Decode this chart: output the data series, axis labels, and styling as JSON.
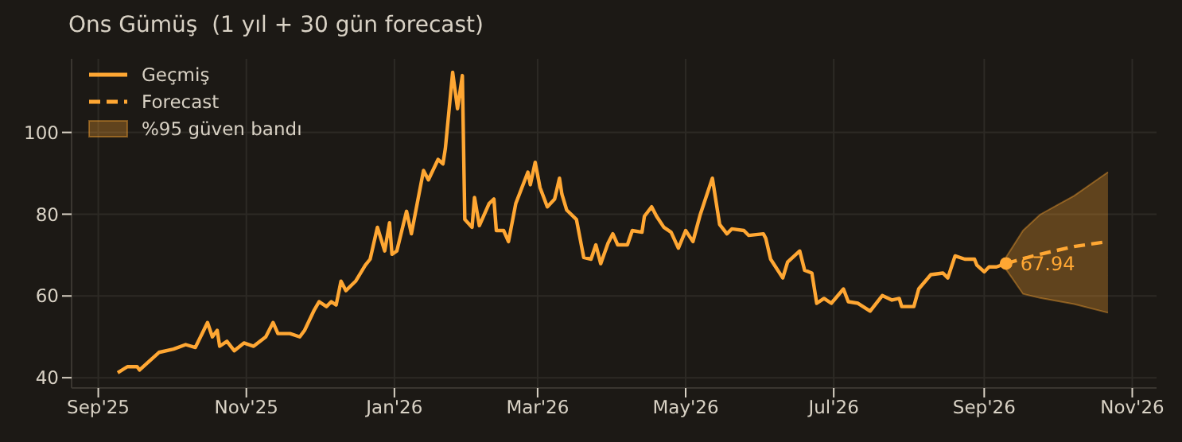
{
  "chart_data": {
    "type": "line",
    "title": "Ons Gümüş  (1 yıl + 30 gün forecast)",
    "xlim": [
      "2025-08-21",
      "2026-11-11"
    ],
    "xticks": [
      {
        "value": "2025-09-01",
        "label": "Sep'25"
      },
      {
        "value": "2025-11-01",
        "label": "Nov'25"
      },
      {
        "value": "2026-01-01",
        "label": "Jan'26"
      },
      {
        "value": "2026-03-01",
        "label": "Mar'26"
      },
      {
        "value": "2026-05-01",
        "label": "May'26"
      },
      {
        "value": "2026-07-01",
        "label": "Jul'26"
      },
      {
        "value": "2026-09-01",
        "label": "Sep'26"
      },
      {
        "value": "2026-11-01",
        "label": "Nov'26"
      }
    ],
    "ylim": [
      37.5,
      118
    ],
    "yticks": [
      40,
      60,
      80,
      100
    ],
    "grid": true,
    "legend": "top left",
    "marker": "none",
    "series": [
      {
        "name": "Geçmiş",
        "color": "#ffa733",
        "line_style": "solid",
        "x": [
          "2025-09-09",
          "2025-09-13",
          "2025-09-17",
          "2025-09-18",
          "2025-09-26",
          "2025-10-02",
          "2025-10-07",
          "2025-10-11",
          "2025-10-16",
          "2025-10-18",
          "2025-10-20",
          "2025-10-21",
          "2025-10-24",
          "2025-10-27",
          "2025-10-31",
          "2025-11-04",
          "2025-11-09",
          "2025-11-12",
          "2025-11-14",
          "2025-11-19",
          "2025-11-23",
          "2025-11-25",
          "2025-11-29",
          "2025-12-01",
          "2025-12-04",
          "2025-12-06",
          "2025-12-08",
          "2025-12-10",
          "2025-12-12",
          "2025-12-16",
          "2025-12-20",
          "2025-12-22",
          "2025-12-25",
          "2025-12-28",
          "2025-12-30",
          "2025-12-31",
          "2026-01-02",
          "2026-01-06",
          "2026-01-08",
          "2026-01-13",
          "2026-01-15",
          "2026-01-19",
          "2026-01-21",
          "2026-01-22",
          "2026-01-25",
          "2026-01-27",
          "2026-01-29",
          "2026-01-30",
          "2026-02-02",
          "2026-02-03",
          "2026-02-05",
          "2026-02-09",
          "2026-02-11",
          "2026-02-12",
          "2026-02-15",
          "2026-02-17",
          "2026-02-20",
          "2026-02-25",
          "2026-02-26",
          "2026-02-28",
          "2026-03-02",
          "2026-03-05",
          "2026-03-08",
          "2026-03-10",
          "2026-03-11",
          "2026-03-13",
          "2026-03-17",
          "2026-03-20",
          "2026-03-23",
          "2026-03-25",
          "2026-03-27",
          "2026-03-30",
          "2026-04-01",
          "2026-04-03",
          "2026-04-07",
          "2026-04-09",
          "2026-04-13",
          "2026-04-14",
          "2026-04-17",
          "2026-04-19",
          "2026-04-22",
          "2026-04-25",
          "2026-04-28",
          "2026-05-01",
          "2026-05-04",
          "2026-05-07",
          "2026-05-12",
          "2026-05-15",
          "2026-05-18",
          "2026-05-20",
          "2026-05-25",
          "2026-05-27",
          "2026-06-02",
          "2026-06-03",
          "2026-06-05",
          "2026-06-10",
          "2026-06-12",
          "2026-06-17",
          "2026-06-19",
          "2026-06-22",
          "2026-06-24",
          "2026-06-27",
          "2026-06-30",
          "2026-07-05",
          "2026-07-07",
          "2026-07-11",
          "2026-07-16",
          "2026-07-21",
          "2026-07-25",
          "2026-07-28",
          "2026-07-29",
          "2026-08-03",
          "2026-08-05",
          "2026-08-10",
          "2026-08-15",
          "2026-08-17",
          "2026-08-20",
          "2026-08-24",
          "2026-08-28",
          "2026-08-29",
          "2026-09-01",
          "2026-09-03",
          "2026-09-06",
          "2026-09-10"
        ],
        "values": [
          41.2,
          42.7,
          42.7,
          41.9,
          46.2,
          47,
          48.1,
          47.4,
          53.5,
          50,
          51.6,
          47.7,
          48.9,
          46.6,
          48.5,
          47.7,
          50,
          53.5,
          50.8,
          50.8,
          50,
          51.6,
          56.6,
          58.6,
          57.4,
          58.6,
          57.8,
          63.6,
          61.3,
          63.6,
          67.5,
          69,
          76.8,
          71,
          77.9,
          70.2,
          71,
          80.7,
          75.2,
          90.7,
          88.4,
          93.4,
          92.3,
          96.1,
          114.7,
          105.8,
          113.9,
          78.7,
          76.8,
          84.1,
          77.2,
          82.6,
          83.7,
          76,
          76,
          73.3,
          82.6,
          90.3,
          87.2,
          92.7,
          86.5,
          81.8,
          83.7,
          88.8,
          84.9,
          81,
          78.7,
          69.4,
          69,
          72.5,
          67.9,
          72.9,
          75.2,
          72.5,
          72.5,
          76,
          75.6,
          79.5,
          81.8,
          79.5,
          76.8,
          75.6,
          71.7,
          76,
          73.3,
          79.9,
          88.8,
          77.5,
          75.2,
          76.4,
          76,
          74.8,
          75.2,
          74.1,
          69,
          64.4,
          68.3,
          71,
          66.3,
          65.6,
          58.2,
          59.4,
          58.2,
          61.7,
          58.6,
          58.2,
          56.3,
          60.1,
          59,
          59.4,
          57.4,
          57.4,
          61.7,
          65.2,
          65.6,
          64.4,
          69.8,
          69,
          69,
          67.5,
          65.9,
          67.1,
          67.1,
          67.94
        ]
      },
      {
        "name": "Forecast",
        "color": "#ffa733",
        "line_style": "dashed",
        "x": [
          "2026-09-10",
          "2026-09-17",
          "2026-09-24",
          "2026-10-08",
          "2026-10-22"
        ],
        "values": [
          67.94,
          69.1,
          70.2,
          72.1,
          73.3
        ],
        "lower": [
          66.5,
          60.5,
          59.5,
          58,
          55.9
        ],
        "upper": [
          69.5,
          76,
          79.9,
          84.5,
          90.3
        ]
      }
    ],
    "annotations": [
      {
        "text": "67.94",
        "x": "2026-09-10",
        "y": 67.94
      },
      "%95 güven bandı"
    ]
  }
}
